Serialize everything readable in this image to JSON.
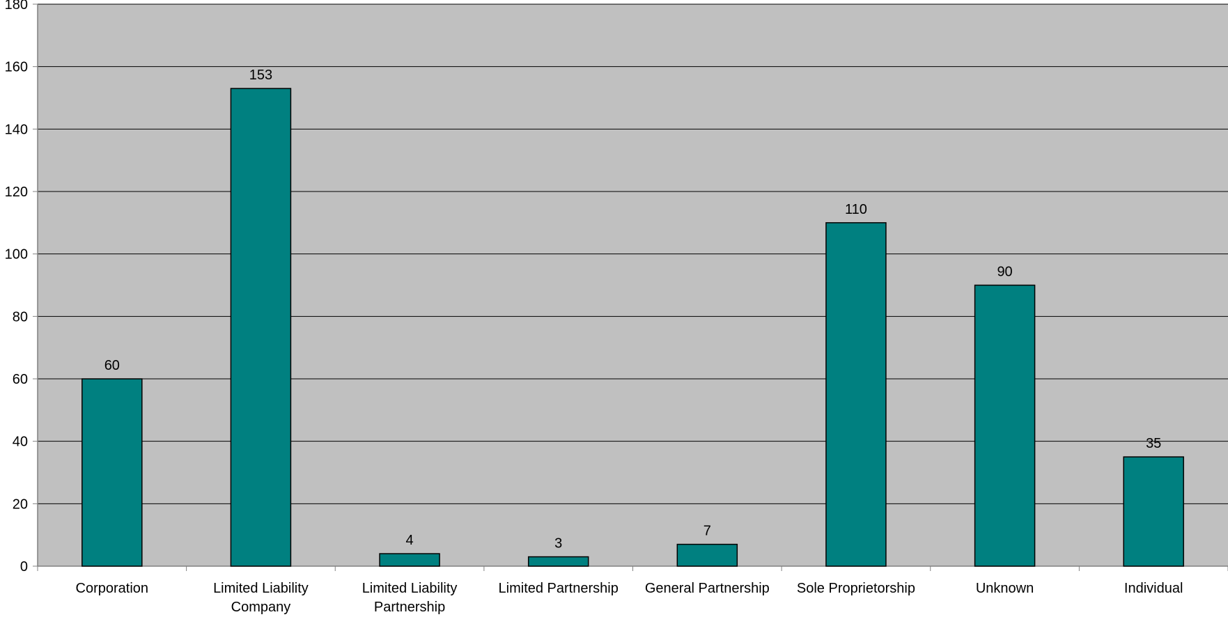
{
  "colors": {
    "bar_fill": "#008080",
    "bar_stroke": "#000000",
    "plot_background": "#C0C0C0",
    "gridline": "#000000",
    "axis": "#808080"
  },
  "chart_data": {
    "type": "bar",
    "title": "",
    "xlabel": "",
    "ylabel": "",
    "ylim": [
      0,
      180
    ],
    "y_ticks": [
      0,
      20,
      40,
      60,
      80,
      100,
      120,
      140,
      160,
      180
    ],
    "grid": true,
    "legend": "none",
    "categories": [
      [
        "Corporation"
      ],
      [
        "Limited Liability",
        "Company"
      ],
      [
        "Limited Liability",
        "Partnership"
      ],
      [
        "Limited Partnership"
      ],
      [
        "General Partnership"
      ],
      [
        "Sole Proprietorship"
      ],
      [
        "Unknown"
      ],
      [
        "Individual"
      ]
    ],
    "values": [
      60,
      153,
      4,
      3,
      7,
      110,
      90,
      35
    ],
    "data_labels": [
      "60",
      "153",
      "4",
      "3",
      "7",
      "110",
      "90",
      "35"
    ]
  }
}
